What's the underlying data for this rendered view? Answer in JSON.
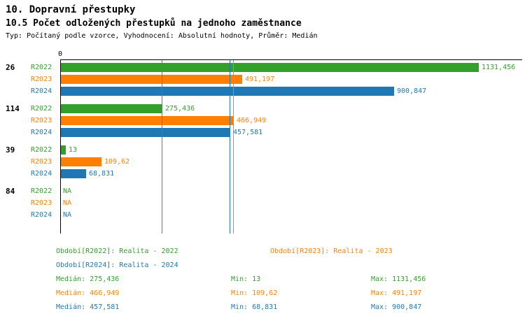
{
  "header": {
    "title": "10. Dopravní přestupky",
    "subtitle": "10.5 Počet odložených přestupků na jednoho zaměstnance",
    "meta": "Typ: Počítaný podle vzorce, Vyhodnocení: Absolutní hodnoty, Průměr: Medián"
  },
  "colors": {
    "series": [
      "#33A02C",
      "#FF7F00",
      "#1F78B4"
    ],
    "axis": "#000000"
  },
  "chart_data": {
    "type": "bar",
    "orientation": "horizontal",
    "origin_label": "0",
    "xlim": [
      0,
      1250
    ],
    "grid": "median-lines-only",
    "series": [
      "R2022",
      "R2023",
      "R2024"
    ],
    "groups": [
      {
        "label": "26",
        "values": [
          1131.456,
          491.197,
          900.847
        ],
        "value_labels": [
          "1131,456",
          "491,197",
          "900,847"
        ]
      },
      {
        "label": "114",
        "values": [
          275.436,
          466.949,
          457.581
        ],
        "value_labels": [
          "275,436",
          "466,949",
          "457,581"
        ]
      },
      {
        "label": "39",
        "values": [
          13,
          109.62,
          68.831
        ],
        "value_labels": [
          "13",
          "109,62",
          "68,831"
        ]
      },
      {
        "label": "84",
        "values": [
          null,
          null,
          null
        ],
        "value_labels": [
          "NA",
          "NA",
          "NA"
        ]
      }
    ],
    "median_lines": [
      275.436,
      466.949,
      457.581
    ],
    "legend": [
      "Období[R2022]: Realita - 2022",
      "Období[R2023]: Realita - 2023",
      "Období[R2024]: Realita - 2024"
    ],
    "legend_position": "bottom",
    "stats": [
      {
        "median": "Medián: 275,436",
        "min": "Min: 13",
        "max": "Max: 1131,456"
      },
      {
        "median": "Medián: 466,949",
        "min": "Min: 109,62",
        "max": "Max: 491,197"
      },
      {
        "median": "Medián: 457,581",
        "min": "Min: 68,831",
        "max": "Max: 900,847"
      }
    ]
  }
}
